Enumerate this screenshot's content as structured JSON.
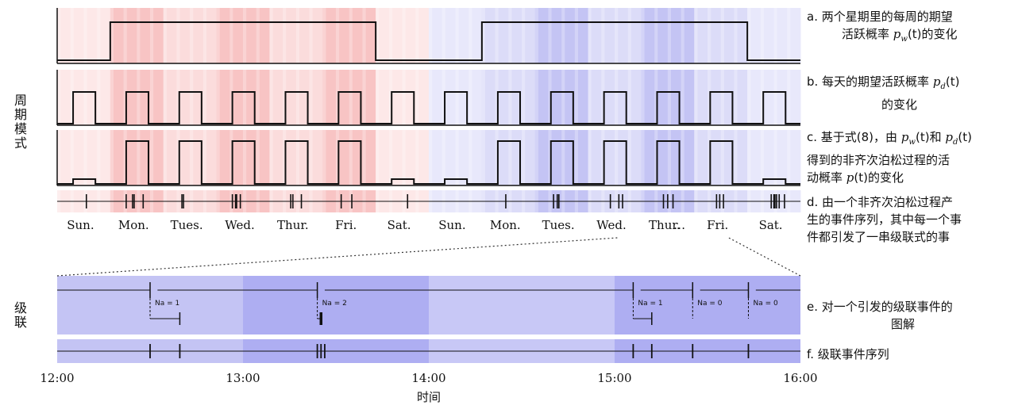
{
  "left_labels": {
    "periodic": "周期模式",
    "cascade": "级联"
  },
  "days": [
    "Sun.",
    "Mon.",
    "Tues.",
    "Wed.",
    "Thur.",
    "Fri.",
    "Sat.",
    "Sun.",
    "Mon.",
    "Tues.",
    "Wed.",
    "Thur.",
    "Fri.",
    "Sat."
  ],
  "ellipsis": "…",
  "xlabel": "时间",
  "time_ticks": [
    "12:00",
    "13:00",
    "14:00",
    "15:00",
    "16:00"
  ],
  "captions": {
    "a_line1": "a.  两个星期里的每周的期望",
    "a_line2_pre": "活跃概率 ",
    "a_sym": "p",
    "a_sub": "w",
    "a_post": "(t)的变化",
    "b_pre": "b.  每天的期望活跃概率 ",
    "b_sym": "p",
    "b_sub": "d",
    "b_post": "(t)",
    "b_line2": "的变化",
    "c_line1_pre": "c.  基于式(8)，由 ",
    "c_sym1": "p",
    "c_sub1": "w",
    "c_mid": "(t)和 ",
    "c_sym2": "p",
    "c_sub2": "d",
    "c_post": "(t)",
    "c_line2": "得到的非齐次泊松过程的活",
    "c_line3_pre": "动概率 ",
    "c_line3_sym": "p",
    "c_line3_post": "(t)的变化",
    "d_line1": "d.  由一个非齐次泊松过程产",
    "d_line2": "生的事件序列，其中每一个事",
    "d_line3": "件都引发了一串级联式的事",
    "e_line1": "e.  对一个引发的级联事件的",
    "e_line2": "图解",
    "f": "f.  级联事件序列"
  },
  "cascade_labels": [
    "Na = 1",
    "Na = 2",
    "Na = 1",
    "Na = 0",
    "Na = 0"
  ],
  "colors": {
    "red_light": "#fbdcdc",
    "red_mid": "#f8c4c4",
    "red_dark": "#f4a6a6",
    "blue_light": "#dcdcf8",
    "blue_mid": "#c4c4f4",
    "blue_dark": "#aeaef2",
    "line": "#111111"
  },
  "chart_data": {
    "type": "diagram",
    "weekly_pattern": [
      0,
      1,
      1,
      1,
      1,
      1,
      0,
      0,
      1,
      1,
      1,
      1,
      1,
      0
    ],
    "daily_pulses_per_day": 1,
    "events_panel_d_days": [
      [
        1.55
      ],
      [
        2.3,
        2.42,
        2.45,
        2.62
      ],
      [
        3.35,
        3.38
      ],
      [
        4.3,
        4.36,
        4.38,
        4.45
      ],
      [
        5.4,
        5.44,
        5.6
      ],
      [
        6.35,
        6.55
      ],
      [
        7.6
      ],
      [
        9.45
      ],
      [
        10.35,
        10.42,
        10.45
      ],
      [
        11.42,
        11.58,
        11.65
      ],
      [
        12.42,
        12.5,
        12.6
      ],
      [
        13.42,
        13.48,
        13.55
      ],
      [
        14.45,
        14.5,
        14.52,
        14.55,
        14.6,
        14.7
      ]
    ],
    "cascade_events_hours": [
      12.5,
      12.66,
      13.4,
      13.42,
      13.44,
      15.1,
      15.2,
      15.42,
      15.72
    ],
    "time_range": [
      "12:00",
      "16:00"
    ]
  }
}
